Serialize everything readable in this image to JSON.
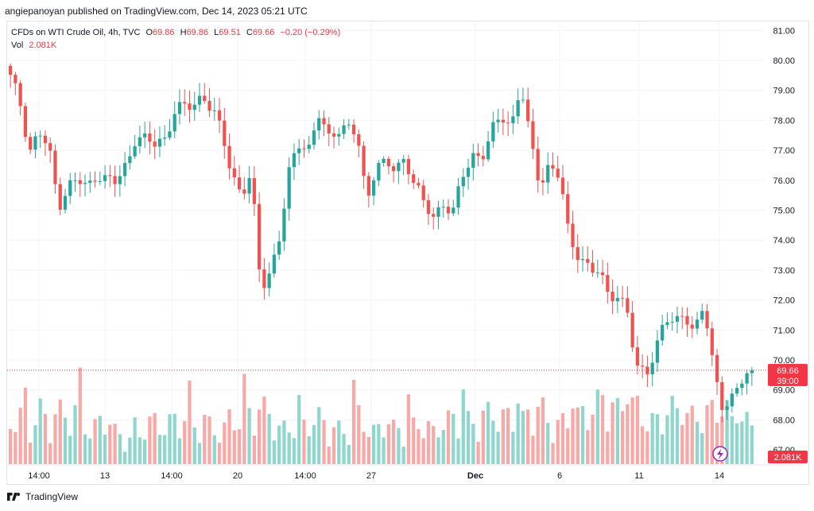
{
  "header": {
    "published": "angiepanoyan published on TradingView.com, Dec 14, 2023 05:21 UTC"
  },
  "legend": {
    "symbol": "CFDs on WTI Crude Oil, 4h, TVC",
    "o_label": "O",
    "o_value": "69.86",
    "h_label": "H",
    "h_value": "69.86",
    "l_label": "L",
    "l_value": "69.51",
    "c_label": "C",
    "c_value": "69.66",
    "change": "−0.20 (−0.29%)",
    "vol_label": "Vol",
    "vol_value": "2.081K"
  },
  "price_badge": {
    "price": "69.66",
    "countdown": "39:00"
  },
  "vol_badge": {
    "value": "2.081K"
  },
  "footer": {
    "brand": "TradingView"
  },
  "colors": {
    "up": "#26a69a",
    "down": "#ef5350",
    "up_vol": "#8fd6cc",
    "down_vol": "#f7a9a7",
    "grid": "#f0f3fa",
    "price_line": "#f23645"
  },
  "chart_data": {
    "type": "candlestick",
    "ylim": [
      66.5,
      81.3
    ],
    "y_ticks": [
      "81.00",
      "80.00",
      "79.00",
      "78.00",
      "77.00",
      "76.00",
      "75.00",
      "74.00",
      "73.00",
      "72.00",
      "71.00",
      "70.00",
      "69.00",
      "68.00",
      "67.00"
    ],
    "x_ticks": [
      "14:00",
      "13",
      "14:00",
      "20",
      "14:00",
      "27",
      "Dec",
      "6",
      "11",
      "14"
    ],
    "last_price": 69.66,
    "ohlc_anchor": [
      79.4,
      78.6,
      77.0,
      77.6,
      77.0,
      75.2,
      75.8,
      76.0,
      75.7,
      76.3,
      76.0,
      75.9,
      76.5,
      77.5,
      77.3,
      77.2,
      77.4,
      78.3,
      78.4,
      78.5,
      78.9,
      78.3,
      77.5,
      76.2,
      75.6,
      76.1,
      72.4,
      73.0,
      74.2,
      76.3,
      77.3,
      77.1,
      78.2,
      77.3,
      77.8,
      77.8,
      77.5,
      75.2,
      76.7,
      76.5,
      76.3,
      76.7,
      76.0,
      75.1,
      74.7,
      75.3,
      75.0,
      76.1,
      76.8,
      76.9,
      77.6,
      78.1,
      77.8,
      79.3,
      77.2,
      75.8,
      76.6,
      76.2,
      74.0,
      73.5,
      73.2,
      72.9,
      72.2,
      72.2,
      71.8,
      69.6,
      69.6,
      70.4,
      71.4,
      71.1,
      71.7,
      70.9,
      71.8,
      69.7,
      68.5,
      68.7,
      69.3,
      69.66
    ],
    "volume_anchor": [
      0.55,
      0.62,
      0.4,
      0.7,
      0.55,
      0.68,
      0.62,
      0.7,
      0.42,
      0.5,
      0.65,
      0.38,
      0.36,
      0.28,
      0.52,
      0.55,
      0.47,
      0.58,
      0.6,
      0.45,
      0.62,
      0.44,
      0.4,
      0.67,
      0.5,
      0.7,
      0.72,
      0.66,
      0.43,
      0.5,
      0.44,
      0.55,
      0.6,
      0.48,
      0.46,
      0.39,
      0.66,
      0.48,
      0.4,
      0.62,
      0.42,
      0.52,
      0.48,
      0.54,
      0.4,
      0.56,
      0.58,
      0.6,
      0.51,
      0.64,
      0.66,
      0.6,
      0.62,
      0.52,
      0.69,
      0.77,
      0.5,
      0.52,
      0.57,
      0.62,
      0.68,
      0.78,
      0.9,
      0.68,
      0.78,
      0.75,
      0.56,
      0.54,
      0.68,
      0.72,
      0.64,
      0.6,
      0.64,
      0.7,
      0.78,
      0.54,
      0.58,
      0.5
    ]
  }
}
